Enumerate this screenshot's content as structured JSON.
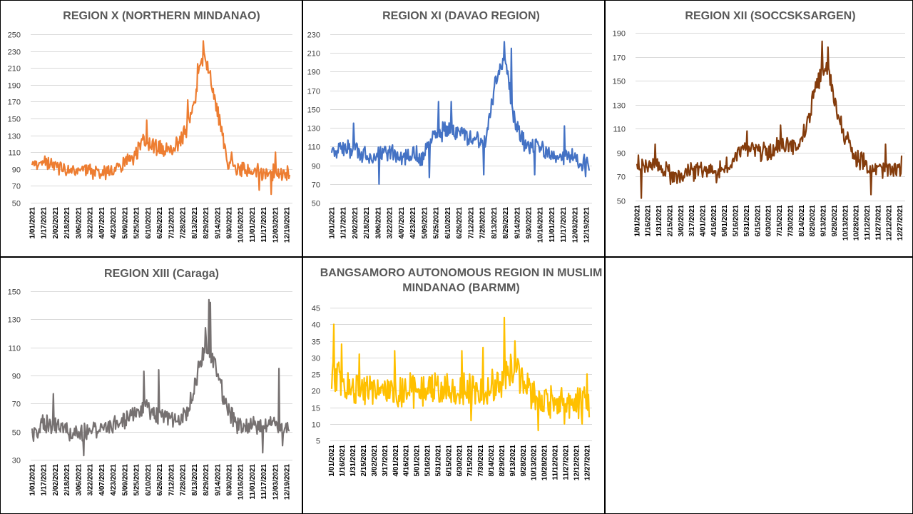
{
  "chart_data": [
    {
      "type": "line",
      "title": "REGION X (NORTHERN MINDANAO)",
      "color": "#ED7D31",
      "ylim": [
        50,
        250
      ],
      "yticks": [
        50,
        70,
        90,
        110,
        130,
        150,
        170,
        190,
        210,
        230,
        250
      ],
      "xlabels": [
        "1/01/2021",
        "1/17/2021",
        "2/02/2021",
        "2/18/2021",
        "3/06/2021",
        "3/22/2021",
        "4/07/2021",
        "4/23/2021",
        "5/09/2021",
        "5/25/2021",
        "6/10/2021",
        "6/26/2021",
        "7/12/2021",
        "7/28/2021",
        "8/13/2021",
        "8/29/2021",
        "9/14/2021",
        "9/30/2021",
        "10/16/2021",
        "11/01/2021",
        "11/17/2021",
        "12/03/2021",
        "12/19/2021"
      ],
      "series": [
        {
          "anchors": [
            [
              1,
              90
            ],
            [
              16,
              100
            ],
            [
              32,
              95
            ],
            [
              48,
              88
            ],
            [
              64,
              88
            ],
            [
              80,
              88
            ],
            [
              96,
              86
            ],
            [
              112,
              88
            ],
            [
              128,
              93
            ],
            [
              144,
              105
            ],
            [
              160,
              124
            ],
            [
              176,
              115
            ],
            [
              192,
              112
            ],
            [
              208,
              120
            ],
            [
              220,
              138
            ],
            [
              232,
              175
            ],
            [
              238,
              210
            ],
            [
              245,
              228
            ],
            [
              250,
              208
            ],
            [
              258,
              180
            ],
            [
              268,
              140
            ],
            [
              278,
              96
            ],
            [
              290,
              90
            ],
            [
              310,
              87
            ],
            [
              330,
              86
            ],
            [
              350,
              86
            ],
            [
              365,
              85
            ]
          ],
          "noise": 8,
          "spikes": [
            [
              163,
              148
            ],
            [
              221,
              172
            ],
            [
              243,
              242
            ],
            [
              235,
              215
            ],
            [
              283,
              110
            ],
            [
              339,
              60
            ],
            [
              345,
              110
            ],
            [
              322,
              65
            ]
          ]
        }
      ]
    },
    {
      "type": "line",
      "title": "REGION XI (DAVAO REGION)",
      "color": "#4472C4",
      "ylim": [
        50,
        230
      ],
      "yticks": [
        50,
        70,
        90,
        110,
        130,
        150,
        170,
        190,
        210,
        230
      ],
      "xlabels": [
        "1/01/2021",
        "1/17/2021",
        "2/02/2021",
        "2/18/2021",
        "3/06/2021",
        "3/22/2021",
        "4/07/2021",
        "4/23/2021",
        "5/09/2021",
        "5/25/2021",
        "6/10/2021",
        "6/26/2021",
        "7/12/2021",
        "7/28/2021",
        "8/13/2021",
        "8/29/2021",
        "9/14/2021",
        "9/30/2021",
        "10/16/2021",
        "11/01/2021",
        "11/17/2021",
        "12/03/2021",
        "12/19/2021"
      ],
      "series": [
        {
          "anchors": [
            [
              1,
              108
            ],
            [
              16,
              105
            ],
            [
              32,
              108
            ],
            [
              48,
              102
            ],
            [
              64,
              100
            ],
            [
              80,
              103
            ],
            [
              96,
              100
            ],
            [
              112,
              103
            ],
            [
              128,
              97
            ],
            [
              144,
              118
            ],
            [
              160,
              128
            ],
            [
              176,
              125
            ],
            [
              192,
              122
            ],
            [
              208,
              118
            ],
            [
              218,
              115
            ],
            [
              225,
              148
            ],
            [
              235,
              185
            ],
            [
              245,
              200
            ],
            [
              252,
              180
            ],
            [
              258,
              140
            ],
            [
              265,
              128
            ],
            [
              275,
              108
            ],
            [
              290,
              110
            ],
            [
              310,
              102
            ],
            [
              330,
              100
            ],
            [
              350,
              96
            ],
            [
              365,
              92
            ]
          ],
          "noise": 9,
          "spikes": [
            [
              32,
              135
            ],
            [
              68,
              70
            ],
            [
              139,
              77
            ],
            [
              152,
              158
            ],
            [
              170,
              158
            ],
            [
              216,
              80
            ],
            [
              245,
              222
            ],
            [
              255,
              215
            ],
            [
              288,
              80
            ],
            [
              330,
              132
            ],
            [
              360,
              78
            ]
          ]
        }
      ]
    },
    {
      "type": "line",
      "title": "REGION XII (SOCCSKSARGEN)",
      "color": "#843C0C",
      "ylim": [
        50,
        190
      ],
      "yticks": [
        50,
        70,
        90,
        110,
        130,
        150,
        170,
        190
      ],
      "xlabels": [
        "1/01/2021",
        "1/16/2021",
        "1/31/2021",
        "2/15/2021",
        "3/02/2021",
        "3/17/2021",
        "4/01/2021",
        "4/16/2021",
        "5/01/2021",
        "5/16/2021",
        "5/31/2021",
        "6/15/2021",
        "6/30/2021",
        "7/15/2021",
        "7/30/2021",
        "8/14/2021",
        "8/29/2021",
        "9/13/2021",
        "9/28/2021",
        "10/13/2021",
        "10/28/2021",
        "11/12/2021",
        "11/27/2021",
        "12/12/2021",
        "12/27/2021"
      ],
      "series": [
        {
          "anchors": [
            [
              1,
              82
            ],
            [
              15,
              78
            ],
            [
              30,
              80
            ],
            [
              45,
              72
            ],
            [
              60,
              70
            ],
            [
              75,
              74
            ],
            [
              90,
              76
            ],
            [
              105,
              75
            ],
            [
              120,
              76
            ],
            [
              135,
              85
            ],
            [
              150,
              95
            ],
            [
              165,
              92
            ],
            [
              180,
              90
            ],
            [
              195,
              95
            ],
            [
              210,
              96
            ],
            [
              225,
              98
            ],
            [
              235,
              115
            ],
            [
              245,
              140
            ],
            [
              255,
              158
            ],
            [
              262,
              160
            ],
            [
              270,
              140
            ],
            [
              280,
              115
            ],
            [
              290,
              100
            ],
            [
              300,
              85
            ],
            [
              315,
              80
            ],
            [
              330,
              76
            ],
            [
              345,
              75
            ],
            [
              360,
              76
            ],
            [
              365,
              80
            ]
          ],
          "noise": 7,
          "spikes": [
            [
              7,
              52
            ],
            [
              26,
              97
            ],
            [
              110,
              65
            ],
            [
              152,
              108
            ],
            [
              198,
              113
            ],
            [
              255,
              183
            ],
            [
              263,
              178
            ],
            [
              322,
              55
            ],
            [
              342,
              97
            ],
            [
              365,
              87
            ]
          ]
        }
      ]
    },
    {
      "type": "line",
      "title": "REGION XIII (Caraga)",
      "color": "#767171",
      "ylim": [
        30,
        150
      ],
      "yticks": [
        30,
        50,
        70,
        90,
        110,
        130,
        150
      ],
      "xlabels": [
        "1/01/2021",
        "1/17/2021",
        "2/02/2021",
        "2/18/2021",
        "3/06/2021",
        "3/22/2021",
        "4/07/2021",
        "4/23/2021",
        "5/09/2021",
        "5/25/2021",
        "6/10/2021",
        "6/26/2021",
        "7/12/2021",
        "7/28/2021",
        "8/13/2021",
        "8/29/2021",
        "9/14/2021",
        "9/30/2021",
        "10/16/2021",
        "11/01/2021",
        "11/17/2021",
        "12/03/2021",
        "12/19/2021"
      ],
      "series": [
        {
          "anchors": [
            [
              1,
              48
            ],
            [
              16,
              55
            ],
            [
              32,
              55
            ],
            [
              48,
              52
            ],
            [
              64,
              48
            ],
            [
              80,
              50
            ],
            [
              96,
              52
            ],
            [
              112,
              55
            ],
            [
              128,
              58
            ],
            [
              144,
              62
            ],
            [
              160,
              68
            ],
            [
              176,
              62
            ],
            [
              192,
              60
            ],
            [
              208,
              58
            ],
            [
              220,
              62
            ],
            [
              230,
              82
            ],
            [
              240,
              100
            ],
            [
              248,
              110
            ],
            [
              256,
              102
            ],
            [
              265,
              88
            ],
            [
              275,
              68
            ],
            [
              290,
              55
            ],
            [
              310,
              55
            ],
            [
              330,
              55
            ],
            [
              345,
              55
            ],
            [
              365,
              50
            ]
          ],
          "noise": 6,
          "spikes": [
            [
              31,
              77
            ],
            [
              74,
              33
            ],
            [
              159,
              93
            ],
            [
              180,
              94
            ],
            [
              246,
              124
            ],
            [
              251,
              144
            ],
            [
              253,
              142
            ],
            [
              327,
              35
            ],
            [
              350,
              95
            ],
            [
              355,
              40
            ]
          ]
        }
      ]
    },
    {
      "type": "line",
      "title": "BANGSAMORO AUTONOMOUS REGION IN MUSLIM MINDANAO (BARMM)",
      "color": "#FFC000",
      "ylim": [
        5,
        45
      ],
      "yticks": [
        5,
        10,
        15,
        20,
        25,
        30,
        35,
        40,
        45
      ],
      "xlabels": [
        "1/01/2021",
        "1/16/2021",
        "1/31/2021",
        "2/15/2021",
        "3/02/2021",
        "3/17/2021",
        "4/01/2021",
        "4/16/2021",
        "5/01/2021",
        "5/16/2021",
        "5/31/2021",
        "6/15/2021",
        "6/30/2021",
        "7/15/2021",
        "7/30/2021",
        "8/14/2021",
        "8/29/2021",
        "9/13/2021",
        "9/28/2021",
        "10/13/2021",
        "10/28/2021",
        "11/12/2021",
        "11/27/2021",
        "12/12/2021",
        "12/27/2021"
      ],
      "series": [
        {
          "anchors": [
            [
              1,
              25
            ],
            [
              15,
              22
            ],
            [
              30,
              21
            ],
            [
              60,
              21
            ],
            [
              90,
              20
            ],
            [
              120,
              20
            ],
            [
              150,
              21
            ],
            [
              180,
              20
            ],
            [
              210,
              20
            ],
            [
              235,
              22
            ],
            [
              250,
              26
            ],
            [
              265,
              25
            ],
            [
              280,
              20
            ],
            [
              300,
              17
            ],
            [
              320,
              17
            ],
            [
              345,
              17
            ],
            [
              365,
              16
            ]
          ],
          "noise": 4.5,
          "spikes": [
            [
              4,
              40
            ],
            [
              15,
              34
            ],
            [
              40,
              31
            ],
            [
              90,
              32
            ],
            [
              185,
              32
            ],
            [
              198,
              11
            ],
            [
              215,
              33
            ],
            [
              245,
              42
            ],
            [
              260,
              35
            ],
            [
              293,
              8
            ],
            [
              330,
              10
            ],
            [
              355,
              10
            ],
            [
              362,
              25
            ],
            [
              365,
              12
            ]
          ]
        }
      ]
    }
  ]
}
